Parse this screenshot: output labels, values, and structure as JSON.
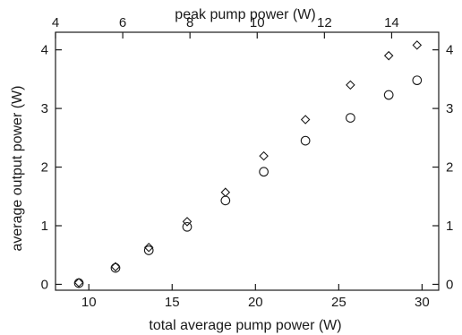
{
  "chart_data": {
    "type": "scatter",
    "title": "",
    "xlabel": "total average pump power (W)",
    "x2label": "peak pump power (W)",
    "ylabel": "average output power (W)",
    "xlim": [
      8,
      31
    ],
    "ylim": [
      -0.1,
      4.3
    ],
    "x2lim": [
      4,
      15.4
    ],
    "xticks": [
      10,
      15,
      20,
      25,
      30
    ],
    "yticks": [
      0,
      1,
      2,
      3,
      4
    ],
    "x2ticks": [
      4,
      6,
      8,
      10,
      12,
      14
    ],
    "grid": false,
    "legend": "none",
    "series": [
      {
        "marker": "diamond",
        "x": [
          9.4,
          11.6,
          13.6,
          15.9,
          18.2,
          20.5,
          23.0,
          25.7,
          28.0,
          29.7
        ],
        "y": [
          0.03,
          0.3,
          0.63,
          1.07,
          1.57,
          2.19,
          2.81,
          3.4,
          3.9,
          4.08
        ]
      },
      {
        "marker": "circle",
        "x": [
          9.4,
          11.6,
          13.6,
          15.9,
          18.2,
          20.5,
          23.0,
          25.7,
          28.0,
          29.7
        ],
        "y": [
          0.02,
          0.28,
          0.58,
          0.98,
          1.43,
          1.92,
          2.45,
          2.84,
          3.23,
          3.48
        ]
      }
    ]
  }
}
